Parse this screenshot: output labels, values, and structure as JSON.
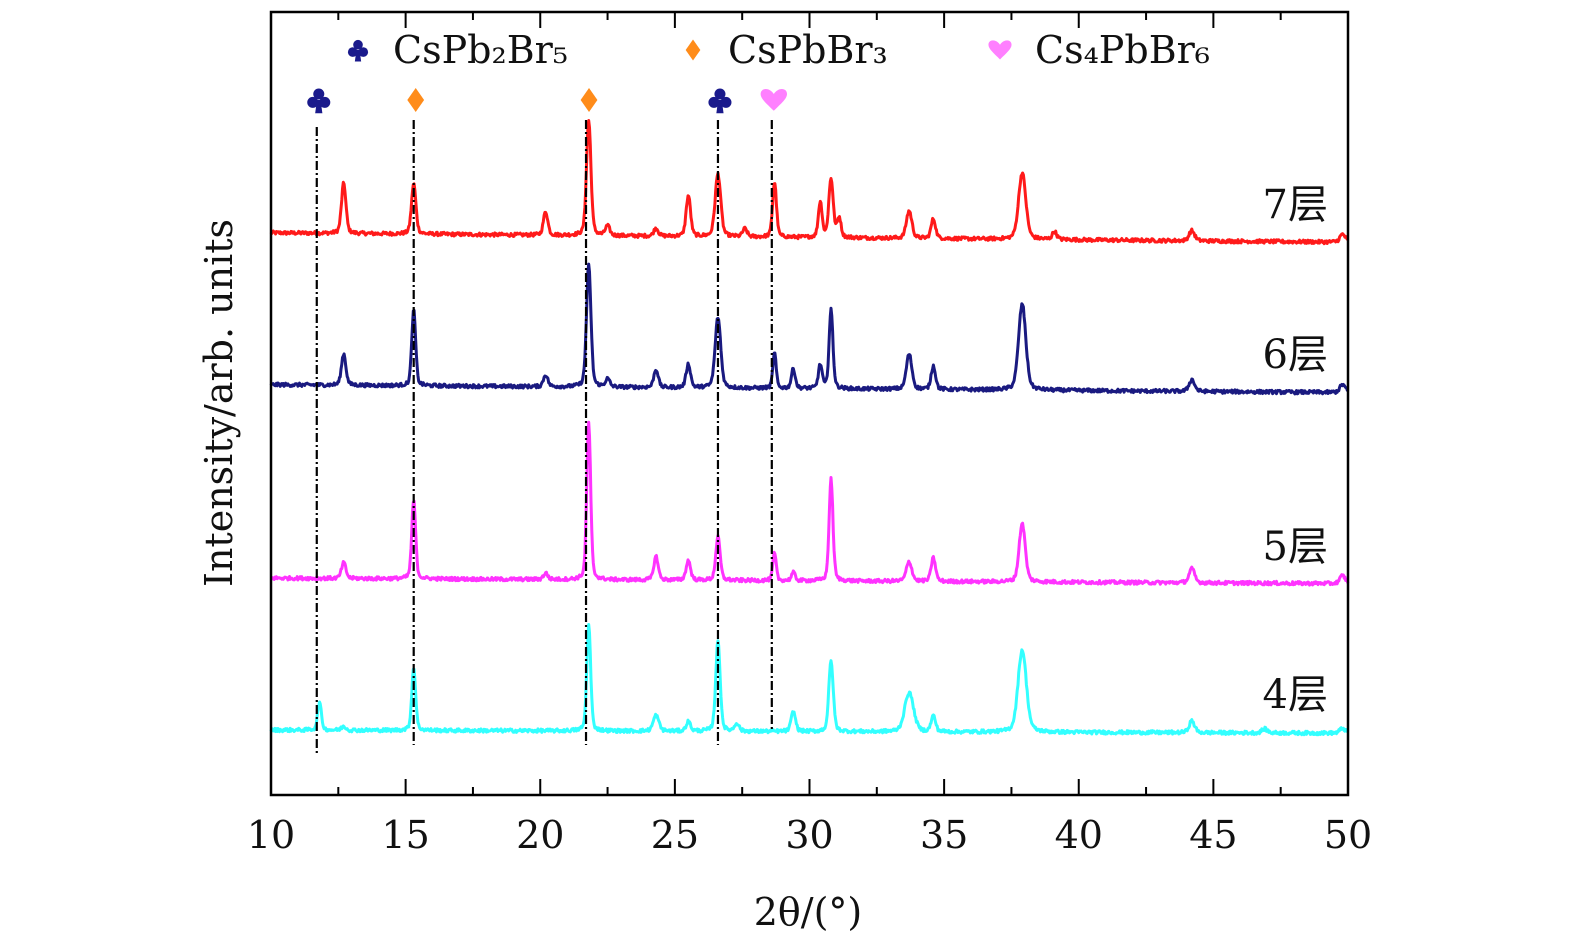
{
  "chart_data": {
    "type": "line",
    "title": "",
    "xlabel": "2θ/(°)",
    "ylabel": "Intensity/arb. units",
    "xlim": [
      10,
      50
    ],
    "ylim": [
      0,
      100
    ],
    "xticks": [
      "10",
      "15",
      "20",
      "25",
      "30",
      "35",
      "40",
      "45",
      "50"
    ],
    "grid": false,
    "legend": {
      "placement": "top",
      "entries": [
        {
          "label": "CsPb₂Br₅",
          "symbol": "club",
          "color": "#1a1a8c"
        },
        {
          "label": "CsPbBr₃",
          "symbol": "diamond",
          "color": "#ff8c1a"
        },
        {
          "label": "Cs₄PbBr₆",
          "symbol": "heart",
          "color": "#ff80ff"
        }
      ]
    },
    "reference_lines": [
      {
        "x": 11.7,
        "symbol": "club",
        "color": "#1a1a8c"
      },
      {
        "x": 15.3,
        "symbol": "diamond",
        "color": "#ff8c1a"
      },
      {
        "x": 21.7,
        "symbol": "diamond",
        "color": "#ff8c1a"
      },
      {
        "x": 26.6,
        "symbol": "club",
        "color": "#1a1a8c"
      },
      {
        "x": 28.6,
        "symbol": "heart",
        "color": "#ff80ff"
      }
    ],
    "series": [
      {
        "name": "7层",
        "color": "#ff1a1a",
        "baseline": 71.8,
        "baseline_end": 70.6,
        "peaks": [
          [
            12.7,
            6.4,
            0.08
          ],
          [
            15.3,
            6.4,
            0.08
          ],
          [
            20.2,
            3,
            0.08
          ],
          [
            21.8,
            14.7,
            0.08
          ],
          [
            22.5,
            1.2,
            0.08
          ],
          [
            24.3,
            1,
            0.08
          ],
          [
            25.5,
            5.2,
            0.08
          ],
          [
            26.6,
            8,
            0.1
          ],
          [
            27.6,
            1,
            0.08
          ],
          [
            28.7,
            7,
            0.07
          ],
          [
            30.4,
            4.5,
            0.07
          ],
          [
            30.8,
            7.5,
            0.08
          ],
          [
            31.1,
            2.5,
            0.07
          ],
          [
            33.7,
            3.5,
            0.1
          ],
          [
            34.6,
            2.5,
            0.08
          ],
          [
            37.9,
            8.5,
            0.13
          ],
          [
            39.1,
            1,
            0.08
          ],
          [
            44.2,
            1.3,
            0.1
          ],
          [
            49.8,
            1,
            0.1
          ]
        ]
      },
      {
        "name": "6层",
        "color": "#1a1a80",
        "baseline": 52.4,
        "baseline_end": 51.4,
        "peaks": [
          [
            12.7,
            4,
            0.08
          ],
          [
            15.3,
            9.6,
            0.07
          ],
          [
            20.2,
            1.5,
            0.08
          ],
          [
            21.8,
            15.5,
            0.08
          ],
          [
            22.5,
            1,
            0.08
          ],
          [
            24.3,
            2.3,
            0.08
          ],
          [
            25.5,
            3,
            0.08
          ],
          [
            26.6,
            9,
            0.1
          ],
          [
            28.7,
            4.5,
            0.06
          ],
          [
            29.4,
            2.5,
            0.07
          ],
          [
            30.4,
            3,
            0.07
          ],
          [
            30.8,
            10,
            0.07
          ],
          [
            33.7,
            4.5,
            0.1
          ],
          [
            34.6,
            3,
            0.08
          ],
          [
            37.9,
            11,
            0.13
          ],
          [
            44.2,
            1.5,
            0.1
          ],
          [
            49.8,
            1,
            0.1
          ]
        ]
      },
      {
        "name": "5层",
        "color": "#ff33ff",
        "baseline": 27.7,
        "baseline_end": 27.0,
        "peaks": [
          [
            12.7,
            2,
            0.08
          ],
          [
            15.3,
            10,
            0.07
          ],
          [
            20.2,
            0.8,
            0.08
          ],
          [
            21.8,
            20,
            0.07
          ],
          [
            24.3,
            3,
            0.08
          ],
          [
            25.5,
            2.5,
            0.08
          ],
          [
            26.6,
            5.5,
            0.08
          ],
          [
            28.7,
            3.5,
            0.06
          ],
          [
            29.4,
            1,
            0.07
          ],
          [
            30.8,
            13,
            0.07
          ],
          [
            33.7,
            2.5,
            0.1
          ],
          [
            34.6,
            3,
            0.08
          ],
          [
            37.9,
            7.5,
            0.11
          ],
          [
            44.2,
            1.8,
            0.1
          ],
          [
            49.8,
            1,
            0.1
          ]
        ]
      },
      {
        "name": "4层",
        "color": "#33ffff",
        "baseline": 8.3,
        "baseline_end": 7.9,
        "peaks": [
          [
            11.8,
            3.5,
            0.07
          ],
          [
            12.7,
            0.5,
            0.08
          ],
          [
            15.3,
            8,
            0.07
          ],
          [
            21.8,
            13.5,
            0.07
          ],
          [
            24.3,
            2,
            0.1
          ],
          [
            25.5,
            1.2,
            0.08
          ],
          [
            26.6,
            11.5,
            0.08
          ],
          [
            27.3,
            1,
            0.08
          ],
          [
            29.4,
            2.5,
            0.08
          ],
          [
            30.8,
            9,
            0.08
          ],
          [
            33.7,
            5,
            0.16
          ],
          [
            34.6,
            2,
            0.08
          ],
          [
            37.9,
            10.5,
            0.15
          ],
          [
            44.2,
            1.5,
            0.1
          ],
          [
            46.9,
            0.5,
            0.1
          ],
          [
            49.8,
            0.6,
            0.1
          ]
        ]
      }
    ]
  }
}
